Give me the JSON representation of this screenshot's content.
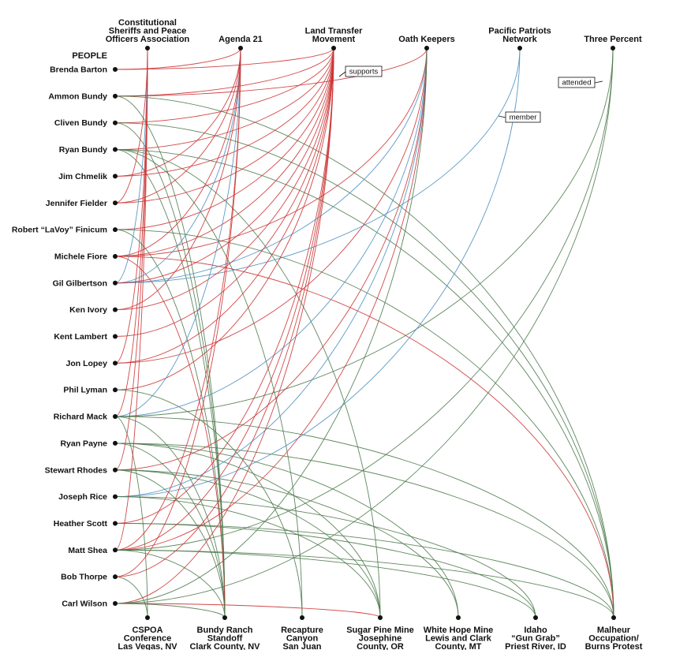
{
  "people_heading": "PEOPLE",
  "colors": {
    "supports": "#cc3333",
    "member": "#4a8fc0",
    "attended": "#4d7a4d"
  },
  "legend": {
    "supports": "supports",
    "member": "member",
    "attended": "attended"
  },
  "organizations": [
    {
      "id": "cspoa_org",
      "lines": [
        "Constitutional",
        "Sheriffs and Peace",
        "Officers Association"
      ]
    },
    {
      "id": "agenda21",
      "lines": [
        "Agenda 21"
      ]
    },
    {
      "id": "land_transfer",
      "lines": [
        "Land Transfer",
        "Movement"
      ]
    },
    {
      "id": "oath_keepers",
      "lines": [
        "Oath Keepers"
      ]
    },
    {
      "id": "pacific_patriots",
      "lines": [
        "Pacific Patriots",
        "Network"
      ]
    },
    {
      "id": "three_percent",
      "lines": [
        "Three Percent"
      ]
    }
  ],
  "people": [
    {
      "id": "brenda_barton",
      "name": "Brenda Barton"
    },
    {
      "id": "ammon_bundy",
      "name": "Ammon Bundy"
    },
    {
      "id": "cliven_bundy",
      "name": "Cliven Bundy"
    },
    {
      "id": "ryan_bundy",
      "name": "Ryan Bundy"
    },
    {
      "id": "jim_chmelik",
      "name": "Jim Chmelik"
    },
    {
      "id": "jennifer_fielder",
      "name": "Jennifer Fielder"
    },
    {
      "id": "lavoy_finicum",
      "name": "Robert “LaVoy” Finicum"
    },
    {
      "id": "michele_fiore",
      "name": "Michele Fiore"
    },
    {
      "id": "gil_gilbertson",
      "name": "Gil Gilbertson"
    },
    {
      "id": "ken_ivory",
      "name": "Ken Ivory"
    },
    {
      "id": "kent_lambert",
      "name": "Kent Lambert"
    },
    {
      "id": "jon_lopey",
      "name": "Jon Lopey"
    },
    {
      "id": "phil_lyman",
      "name": "Phil Lyman"
    },
    {
      "id": "richard_mack",
      "name": "Richard Mack"
    },
    {
      "id": "ryan_payne",
      "name": "Ryan Payne"
    },
    {
      "id": "stewart_rhodes",
      "name": "Stewart Rhodes"
    },
    {
      "id": "joseph_rice",
      "name": "Joseph Rice"
    },
    {
      "id": "heather_scott",
      "name": "Heather Scott"
    },
    {
      "id": "matt_shea",
      "name": "Matt Shea"
    },
    {
      "id": "bob_thorpe",
      "name": "Bob Thorpe"
    },
    {
      "id": "carl_wilson",
      "name": "Carl Wilson"
    }
  ],
  "events": [
    {
      "id": "cspoa_conf",
      "lines": [
        "CSPOA",
        "Conference",
        "Las Vegas, NV"
      ]
    },
    {
      "id": "bundy_ranch",
      "lines": [
        "Bundy Ranch",
        "Standoff",
        "Clark County, NV"
      ]
    },
    {
      "id": "recapture",
      "lines": [
        "Recapture",
        "Canyon",
        "San Juan"
      ]
    },
    {
      "id": "sugar_pine",
      "lines": [
        "Sugar Pine Mine",
        "Josephine",
        "County, OR"
      ]
    },
    {
      "id": "white_hope",
      "lines": [
        "White Hope Mine",
        "Lewis and Clark",
        "County, MT"
      ]
    },
    {
      "id": "idaho_gun_grab",
      "lines": [
        "Idaho",
        "“Gun Grab”",
        "Priest River, ID"
      ]
    },
    {
      "id": "malheur",
      "lines": [
        "Malheur",
        "Occupation/",
        "Burns Protest"
      ]
    }
  ],
  "links": [
    {
      "p": "brenda_barton",
      "t": "agenda21",
      "type": "supports"
    },
    {
      "p": "brenda_barton",
      "t": "land_transfer",
      "type": "supports"
    },
    {
      "p": "ammon_bundy",
      "t": "land_transfer",
      "type": "supports"
    },
    {
      "p": "ammon_bundy",
      "t": "oath_keepers",
      "type": "supports"
    },
    {
      "p": "ammon_bundy",
      "t": "bundy_ranch",
      "type": "attended"
    },
    {
      "p": "ammon_bundy",
      "t": "malheur",
      "type": "attended"
    },
    {
      "p": "cliven_bundy",
      "t": "land_transfer",
      "type": "supports"
    },
    {
      "p": "cliven_bundy",
      "t": "bundy_ranch",
      "type": "attended"
    },
    {
      "p": "cliven_bundy",
      "t": "malheur",
      "type": "attended"
    },
    {
      "p": "ryan_bundy",
      "t": "land_transfer",
      "type": "supports"
    },
    {
      "p": "ryan_bundy",
      "t": "bundy_ranch",
      "type": "attended"
    },
    {
      "p": "ryan_bundy",
      "t": "recapture",
      "type": "attended"
    },
    {
      "p": "ryan_bundy",
      "t": "malheur",
      "type": "attended"
    },
    {
      "p": "ryan_bundy",
      "t": "sugar_pine",
      "type": "attended"
    },
    {
      "p": "jim_chmelik",
      "t": "agenda21",
      "type": "supports"
    },
    {
      "p": "jim_chmelik",
      "t": "land_transfer",
      "type": "supports"
    },
    {
      "p": "jennifer_fielder",
      "t": "agenda21",
      "type": "supports"
    },
    {
      "p": "jennifer_fielder",
      "t": "land_transfer",
      "type": "supports"
    },
    {
      "p": "jennifer_fielder",
      "t": "cspoa_org",
      "type": "supports"
    },
    {
      "p": "lavoy_finicum",
      "t": "land_transfer",
      "type": "supports"
    },
    {
      "p": "lavoy_finicum",
      "t": "bundy_ranch",
      "type": "attended"
    },
    {
      "p": "lavoy_finicum",
      "t": "malheur",
      "type": "attended"
    },
    {
      "p": "michele_fiore",
      "t": "agenda21",
      "type": "supports"
    },
    {
      "p": "michele_fiore",
      "t": "land_transfer",
      "type": "supports"
    },
    {
      "p": "michele_fiore",
      "t": "oath_keepers",
      "type": "supports"
    },
    {
      "p": "michele_fiore",
      "t": "bundy_ranch",
      "type": "supports"
    },
    {
      "p": "michele_fiore",
      "t": "malheur",
      "type": "supports"
    },
    {
      "p": "gil_gilbertson",
      "t": "oath_keepers",
      "type": "member"
    },
    {
      "p": "gil_gilbertson",
      "t": "cspoa_org",
      "type": "member"
    },
    {
      "p": "gil_gilbertson",
      "t": "agenda21",
      "type": "member"
    },
    {
      "p": "gil_gilbertson",
      "t": "pacific_patriots",
      "type": "member"
    },
    {
      "p": "gil_gilbertson",
      "t": "land_transfer",
      "type": "supports"
    },
    {
      "p": "ken_ivory",
      "t": "agenda21",
      "type": "supports"
    },
    {
      "p": "ken_ivory",
      "t": "land_transfer",
      "type": "supports"
    },
    {
      "p": "kent_lambert",
      "t": "land_transfer",
      "type": "supports"
    },
    {
      "p": "jon_lopey",
      "t": "cspoa_org",
      "type": "supports"
    },
    {
      "p": "jon_lopey",
      "t": "land_transfer",
      "type": "supports"
    },
    {
      "p": "jon_lopey",
      "t": "oath_keepers",
      "type": "supports"
    },
    {
      "p": "phil_lyman",
      "t": "land_transfer",
      "type": "supports"
    },
    {
      "p": "phil_lyman",
      "t": "recapture",
      "type": "attended"
    },
    {
      "p": "richard_mack",
      "t": "cspoa_org",
      "type": "supports"
    },
    {
      "p": "richard_mack",
      "t": "agenda21",
      "type": "member"
    },
    {
      "p": "richard_mack",
      "t": "oath_keepers",
      "type": "member"
    },
    {
      "p": "richard_mack",
      "t": "three_percent",
      "type": "attended"
    },
    {
      "p": "richard_mack",
      "t": "bundy_ranch",
      "type": "attended"
    },
    {
      "p": "richard_mack",
      "t": "cspoa_conf",
      "type": "attended"
    },
    {
      "p": "richard_mack",
      "t": "malheur",
      "type": "attended"
    },
    {
      "p": "ryan_payne",
      "t": "bundy_ranch",
      "type": "attended"
    },
    {
      "p": "ryan_payne",
      "t": "white_hope",
      "type": "attended"
    },
    {
      "p": "ryan_payne",
      "t": "malheur",
      "type": "attended"
    },
    {
      "p": "ryan_payne",
      "t": "sugar_pine",
      "type": "attended"
    },
    {
      "p": "stewart_rhodes",
      "t": "oath_keepers",
      "type": "supports"
    },
    {
      "p": "stewart_rhodes",
      "t": "cspoa_org",
      "type": "supports"
    },
    {
      "p": "stewart_rhodes",
      "t": "bundy_ranch",
      "type": "attended"
    },
    {
      "p": "stewart_rhodes",
      "t": "sugar_pine",
      "type": "attended"
    },
    {
      "p": "stewart_rhodes",
      "t": "white_hope",
      "type": "attended"
    },
    {
      "p": "joseph_rice",
      "t": "oath_keepers",
      "type": "member"
    },
    {
      "p": "joseph_rice",
      "t": "pacific_patriots",
      "type": "member"
    },
    {
      "p": "joseph_rice",
      "t": "sugar_pine",
      "type": "attended"
    },
    {
      "p": "joseph_rice",
      "t": "idaho_gun_grab",
      "type": "attended"
    },
    {
      "p": "heather_scott",
      "t": "land_transfer",
      "type": "supports"
    },
    {
      "p": "heather_scott",
      "t": "idaho_gun_grab",
      "type": "attended"
    },
    {
      "p": "heather_scott",
      "t": "malheur",
      "type": "attended"
    },
    {
      "p": "matt_shea",
      "t": "agenda21",
      "type": "supports"
    },
    {
      "p": "matt_shea",
      "t": "land_transfer",
      "type": "supports"
    },
    {
      "p": "matt_shea",
      "t": "oath_keepers",
      "type": "supports"
    },
    {
      "p": "matt_shea",
      "t": "cspoa_org",
      "type": "supports"
    },
    {
      "p": "matt_shea",
      "t": "bundy_ranch",
      "type": "attended"
    },
    {
      "p": "matt_shea",
      "t": "malheur",
      "type": "attended"
    },
    {
      "p": "matt_shea",
      "t": "idaho_gun_grab",
      "type": "attended"
    },
    {
      "p": "matt_shea",
      "t": "three_percent",
      "type": "attended"
    },
    {
      "p": "bob_thorpe",
      "t": "agenda21",
      "type": "supports"
    },
    {
      "p": "bob_thorpe",
      "t": "land_transfer",
      "type": "supports"
    },
    {
      "p": "bob_thorpe",
      "t": "cspoa_conf",
      "type": "attended"
    },
    {
      "p": "carl_wilson",
      "t": "land_transfer",
      "type": "supports"
    },
    {
      "p": "carl_wilson",
      "t": "sugar_pine",
      "type": "supports"
    },
    {
      "p": "carl_wilson",
      "t": "bundy_ranch",
      "type": "attended"
    },
    {
      "p": "carl_wilson",
      "t": "oath_keepers",
      "type": "attended"
    },
    {
      "p": "carl_wilson",
      "t": "three_percent",
      "type": "attended"
    }
  ]
}
